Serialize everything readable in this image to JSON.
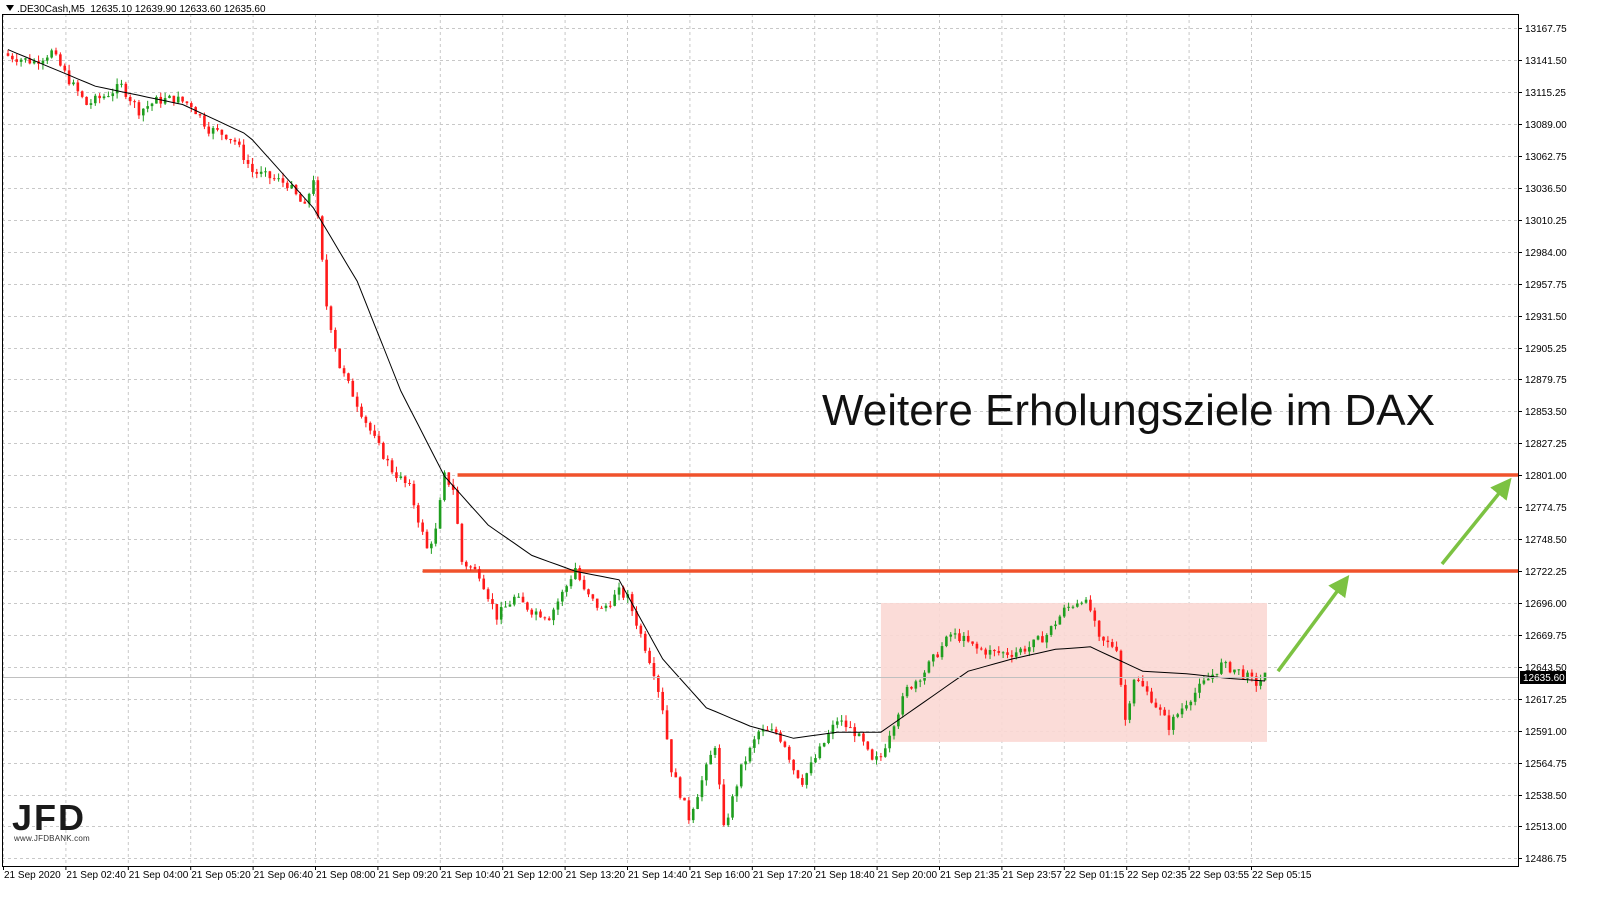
{
  "header": {
    "symbol": ".DE30Cash,M5",
    "ohlc": "12635.10 12639.90 12633.60 12635.60"
  },
  "annotation": "Weitere Erholungsziele im DAX",
  "logo": {
    "text": "JFD",
    "url": "www.JFDBANK.com"
  },
  "colors": {
    "bull": "#1f9e1f",
    "bear": "#ff1a1a",
    "resistance": "#f0522c",
    "zone": "#fbd8d4",
    "arrow": "#7cc242",
    "ma": "#000000",
    "grid": "#c8c8c8"
  },
  "chart_data": {
    "type": "candlestick",
    "y_ticks": [
      "13167.75",
      "13141.50",
      "13115.25",
      "13089.00",
      "13062.75",
      "13036.50",
      "13010.25",
      "12984.00",
      "12957.75",
      "12931.50",
      "12905.25",
      "12879.75",
      "12853.50",
      "12827.25",
      "12801.00",
      "12774.75",
      "12748.50",
      "12722.25",
      "12696.00",
      "12669.75",
      "12643.50",
      "12617.25",
      "12591.00",
      "12564.75",
      "12538.50",
      "12513.00",
      "12486.75"
    ],
    "ylim": [
      12480,
      13180
    ],
    "x_ticks": [
      "21 Sep 2020",
      "21 Sep 02:40",
      "21 Sep 04:00",
      "21 Sep 05:20",
      "21 Sep 06:40",
      "21 Sep 08:00",
      "21 Sep 09:20",
      "21 Sep 10:40",
      "21 Sep 12:00",
      "21 Sep 13:20",
      "21 Sep 14:40",
      "21 Sep 16:00",
      "21 Sep 17:20",
      "21 Sep 18:40",
      "21 Sep 20:00",
      "21 Sep 21:35",
      "21 Sep 23:57",
      "22 Sep 01:15",
      "22 Sep 02:35",
      "22 Sep 03:55",
      "22 Sep 05:15"
    ],
    "current_price": "12635.60",
    "close_path": [
      [
        0,
        13145
      ],
      [
        6,
        13140
      ],
      [
        10,
        13148
      ],
      [
        14,
        13125
      ],
      [
        18,
        13105
      ],
      [
        22,
        13112
      ],
      [
        26,
        13120
      ],
      [
        30,
        13100
      ],
      [
        34,
        13108
      ],
      [
        38,
        13110
      ],
      [
        42,
        13105
      ],
      [
        46,
        13085
      ],
      [
        50,
        13080
      ],
      [
        52,
        13075
      ],
      [
        56,
        13050
      ],
      [
        60,
        13045
      ],
      [
        64,
        13040
      ],
      [
        68,
        13020
      ],
      [
        70,
        13045
      ],
      [
        73,
        12940
      ],
      [
        76,
        12890
      ],
      [
        80,
        12860
      ],
      [
        84,
        12830
      ],
      [
        88,
        12805
      ],
      [
        92,
        12790
      ],
      [
        96,
        12740
      ],
      [
        98,
        12755
      ],
      [
        100,
        12800
      ],
      [
        102,
        12790
      ],
      [
        104,
        12730
      ],
      [
        108,
        12720
      ],
      [
        112,
        12685
      ],
      [
        116,
        12700
      ],
      [
        120,
        12690
      ],
      [
        124,
        12685
      ],
      [
        128,
        12710
      ],
      [
        130,
        12725
      ],
      [
        132,
        12705
      ],
      [
        136,
        12690
      ],
      [
        140,
        12705
      ],
      [
        142,
        12700
      ],
      [
        146,
        12660
      ],
      [
        148,
        12640
      ],
      [
        150,
        12610
      ],
      [
        152,
        12560
      ],
      [
        156,
        12520
      ],
      [
        160,
        12560
      ],
      [
        162,
        12580
      ],
      [
        164,
        12510
      ],
      [
        168,
        12560
      ],
      [
        172,
        12590
      ],
      [
        176,
        12590
      ],
      [
        178,
        12580
      ],
      [
        180,
        12560
      ],
      [
        182,
        12550
      ],
      [
        186,
        12575
      ],
      [
        190,
        12600
      ],
      [
        194,
        12590
      ],
      [
        196,
        12580
      ],
      [
        198,
        12565
      ],
      [
        200,
        12570
      ],
      [
        202,
        12590
      ],
      [
        206,
        12625
      ],
      [
        210,
        12640
      ],
      [
        214,
        12660
      ],
      [
        216,
        12670
      ],
      [
        218,
        12668
      ],
      [
        222,
        12658
      ],
      [
        226,
        12655
      ],
      [
        230,
        12655
      ],
      [
        234,
        12660
      ],
      [
        238,
        12670
      ],
      [
        242,
        12690
      ],
      [
        246,
        12700
      ],
      [
        248,
        12690
      ],
      [
        250,
        12665
      ],
      [
        254,
        12660
      ],
      [
        256,
        12600
      ],
      [
        258,
        12635
      ],
      [
        262,
        12618
      ],
      [
        266,
        12595
      ],
      [
        270,
        12615
      ],
      [
        274,
        12630
      ],
      [
        278,
        12645
      ],
      [
        282,
        12640
      ],
      [
        286,
        12630
      ],
      [
        288,
        12636
      ]
    ],
    "ma_path": [
      [
        0,
        13150
      ],
      [
        20,
        13120
      ],
      [
        40,
        13105
      ],
      [
        55,
        13080
      ],
      [
        70,
        13020
      ],
      [
        80,
        12960
      ],
      [
        90,
        12870
      ],
      [
        100,
        12800
      ],
      [
        110,
        12760
      ],
      [
        120,
        12735
      ],
      [
        130,
        12722
      ],
      [
        140,
        12715
      ],
      [
        150,
        12650
      ],
      [
        160,
        12610
      ],
      [
        170,
        12595
      ],
      [
        180,
        12585
      ],
      [
        190,
        12590
      ],
      [
        200,
        12590
      ],
      [
        210,
        12615
      ],
      [
        220,
        12640
      ],
      [
        230,
        12650
      ],
      [
        240,
        12658
      ],
      [
        248,
        12660
      ],
      [
        260,
        12640
      ],
      [
        270,
        12638
      ],
      [
        280,
        12634
      ],
      [
        288,
        12632
      ]
    ],
    "resistance_levels": [
      12801.0,
      12722.25
    ],
    "consolidation_zone": {
      "from_index": 200,
      "to_index": 288,
      "low": 12582,
      "high": 12696
    }
  }
}
